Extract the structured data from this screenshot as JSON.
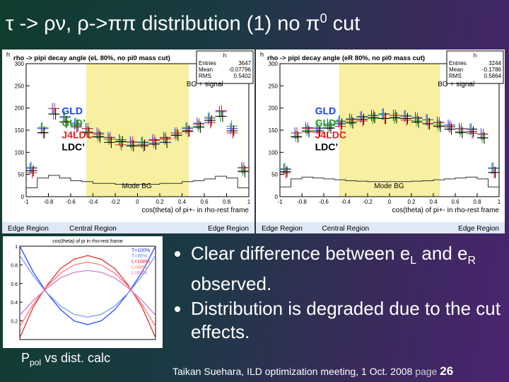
{
  "title": {
    "main": "τ -> ρν, ρ->ππ distribution (1) no π",
    "sup": "0",
    "end": " cut"
  },
  "plots": [
    {
      "header": "rho -> pipi decay angle (eL 80%, no pi0 mass cut)",
      "hist_name": "h",
      "stats": [
        [
          "Entries",
          "3647"
        ],
        [
          "Mean",
          "-0.07796"
        ],
        [
          "RMS",
          "0.5402"
        ]
      ],
      "legend": [
        "GLD",
        "GLD’",
        "J4LDC",
        "LDC’"
      ],
      "bg_label": "Mode BG",
      "signal_label": "BG + signal",
      "xlim": [
        -1,
        1
      ],
      "ylim": [
        0,
        300
      ],
      "xticks": [
        -1,
        -0.8,
        -0.6,
        -0.4,
        -0.2,
        0,
        0.2,
        0.4,
        0.6,
        0.8,
        1
      ],
      "yticks": [
        0,
        50,
        100,
        150,
        200,
        250,
        300
      ],
      "xlabel": "cos(theta) of pi+- in rho-rest frame",
      "regions": [
        "Edge Region",
        "Central Region",
        "Edge Region"
      ],
      "series": [
        {
          "name": "GLD",
          "color": "#1a3cff",
          "values": [
            60,
            150,
            195,
            175,
            160,
            150,
            140,
            130,
            125,
            120,
            118,
            125,
            130,
            140,
            150,
            162,
            172,
            188,
            150,
            62
          ]
        },
        {
          "name": "GLD’",
          "color": "#2aa02a",
          "values": [
            65,
            155,
            185,
            180,
            165,
            145,
            135,
            128,
            122,
            115,
            122,
            120,
            128,
            138,
            155,
            158,
            178,
            180,
            158,
            58
          ]
        },
        {
          "name": "J4LDC",
          "color": "#e02020",
          "values": [
            55,
            145,
            200,
            170,
            158,
            155,
            142,
            134,
            118,
            124,
            115,
            128,
            133,
            145,
            148,
            165,
            168,
            195,
            145,
            66
          ]
        },
        {
          "name": "LDC’",
          "color": "#000000",
          "values": [
            62,
            148,
            190,
            172,
            163,
            148,
            138,
            126,
            128,
            118,
            120,
            122,
            126,
            142,
            152,
            160,
            175,
            185,
            152,
            60
          ]
        }
      ],
      "bg": [
        20,
        42,
        48,
        42,
        36,
        34,
        30,
        30,
        28,
        28,
        28,
        28,
        30,
        30,
        34,
        36,
        40,
        46,
        42,
        20
      ]
    },
    {
      "header": "rho -> pipi decay angle (eR 80%, no pi0 mass cut)",
      "hist_name": "h",
      "stats": [
        [
          "Entries",
          "3244"
        ],
        [
          "Mean",
          "-0.1786"
        ],
        [
          "RMS",
          "0.5864"
        ]
      ],
      "legend": [
        "GLD",
        "GLD’",
        "J4LDC",
        "LDC’"
      ],
      "bg_label": "Mode BG",
      "signal_label": "BG + signal",
      "xlim": [
        -1,
        1
      ],
      "ylim": [
        0,
        300
      ],
      "xticks": [
        -1,
        -0.8,
        -0.6,
        -0.4,
        -0.2,
        0,
        0.2,
        0.4,
        0.6,
        0.8,
        1
      ],
      "yticks": [
        0,
        50,
        100,
        150,
        200,
        250,
        300
      ],
      "xlabel": "cos(theta) of pi+- in rho-rest frame",
      "regions": [
        "Edge Region",
        "Central Region",
        "Edge Region"
      ],
      "series": [
        {
          "name": "GLD",
          "color": "#1a3cff",
          "values": [
            58,
            140,
            152,
            150,
            160,
            165,
            172,
            176,
            180,
            182,
            180,
            178,
            175,
            170,
            164,
            158,
            150,
            148,
            138,
            60
          ]
        },
        {
          "name": "GLD’",
          "color": "#2aa02a",
          "values": [
            62,
            135,
            148,
            155,
            155,
            170,
            168,
            180,
            175,
            186,
            176,
            182,
            170,
            172,
            160,
            155,
            146,
            152,
            132,
            64
          ]
        },
        {
          "name": "J4LDC",
          "color": "#e02020",
          "values": [
            55,
            145,
            155,
            146,
            162,
            160,
            175,
            172,
            184,
            178,
            185,
            174,
            178,
            166,
            168,
            160,
            154,
            144,
            142,
            56
          ]
        },
        {
          "name": "LDC’",
          "color": "#000000",
          "values": [
            60,
            138,
            150,
            152,
            158,
            168,
            170,
            178,
            182,
            180,
            182,
            180,
            172,
            168,
            162,
            156,
            148,
            150,
            136,
            58
          ]
        }
      ],
      "bg": [
        22,
        40,
        44,
        42,
        40,
        38,
        36,
        35,
        34,
        34,
        34,
        34,
        35,
        36,
        38,
        40,
        42,
        44,
        40,
        22
      ]
    }
  ],
  "calc_plot": {
    "header": "cos(theta) of pi in rho-rest frame",
    "xlim": [
      -1,
      1
    ],
    "ylim": [
      0,
      1
    ],
    "yticks": [
      0.2,
      0.4,
      0.6,
      0.8,
      1
    ],
    "series": [
      {
        "name": "T=100%",
        "color": "#1a3cff",
        "values": [
          1,
          0.72,
          0.5,
          0.32,
          0.2,
          0.16,
          0.2,
          0.32,
          0.5,
          0.72,
          1
        ]
      },
      {
        "name": "T=80%",
        "color": "#7090ff",
        "values": [
          0.9,
          0.68,
          0.5,
          0.36,
          0.27,
          0.24,
          0.27,
          0.36,
          0.5,
          0.68,
          0.9
        ]
      },
      {
        "name": "L=100%",
        "color": "#e02020",
        "values": [
          0.02,
          0.35,
          0.58,
          0.76,
          0.86,
          0.9,
          0.86,
          0.76,
          0.58,
          0.35,
          0.02
        ]
      },
      {
        "name": "L=80%",
        "color": "#ff7070",
        "values": [
          0.14,
          0.38,
          0.57,
          0.71,
          0.8,
          0.83,
          0.8,
          0.71,
          0.57,
          0.38,
          0.14
        ]
      },
      {
        "name": "L=60%",
        "color": "#d070d0",
        "values": [
          0.26,
          0.42,
          0.55,
          0.66,
          0.72,
          0.74,
          0.72,
          0.66,
          0.55,
          0.42,
          0.26
        ]
      }
    ]
  },
  "calc_label": {
    "main": "P",
    "sub": "pol",
    "end": " vs dist. calc"
  },
  "bullets": [
    {
      "a": "Clear difference between e",
      "sub1": "L",
      "b": " and e",
      "sub2": "R",
      "c": " observed."
    },
    {
      "a": "Distribution is degraded due to the cut effects."
    }
  ],
  "footer": {
    "text": "Taikan Suehara, ILD optimization meeting, 1 Oct. 2008",
    "page_label": "page",
    "page": "26"
  }
}
